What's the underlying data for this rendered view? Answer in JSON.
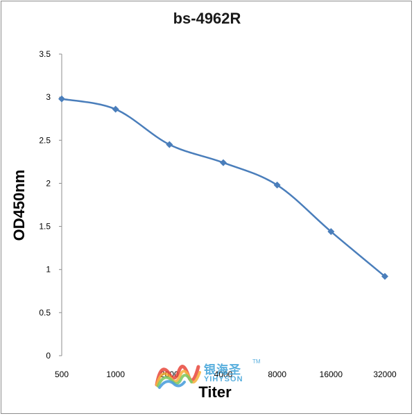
{
  "chart_data": {
    "type": "line",
    "title": "bs-4962R",
    "xlabel": "Titer",
    "ylabel": "OD450nm",
    "categories": [
      "500",
      "1000",
      "2000",
      "4000",
      "8000",
      "16000",
      "32000"
    ],
    "series": [
      {
        "values": [
          2.98,
          2.86,
          2.45,
          2.24,
          1.98,
          1.44,
          0.92
        ]
      }
    ],
    "yticks": [
      "0",
      "0.5",
      "1",
      "1.5",
      "2",
      "2.5",
      "3",
      "3.5"
    ],
    "ylim": [
      0,
      3.5
    ],
    "grid": false,
    "legend": "none",
    "colors": {
      "line": "#4a7ebb",
      "axis": "#8c8c8c"
    }
  },
  "watermark": {
    "cn": "银海圣",
    "tm": "TM",
    "en": "YIHYSON"
  }
}
